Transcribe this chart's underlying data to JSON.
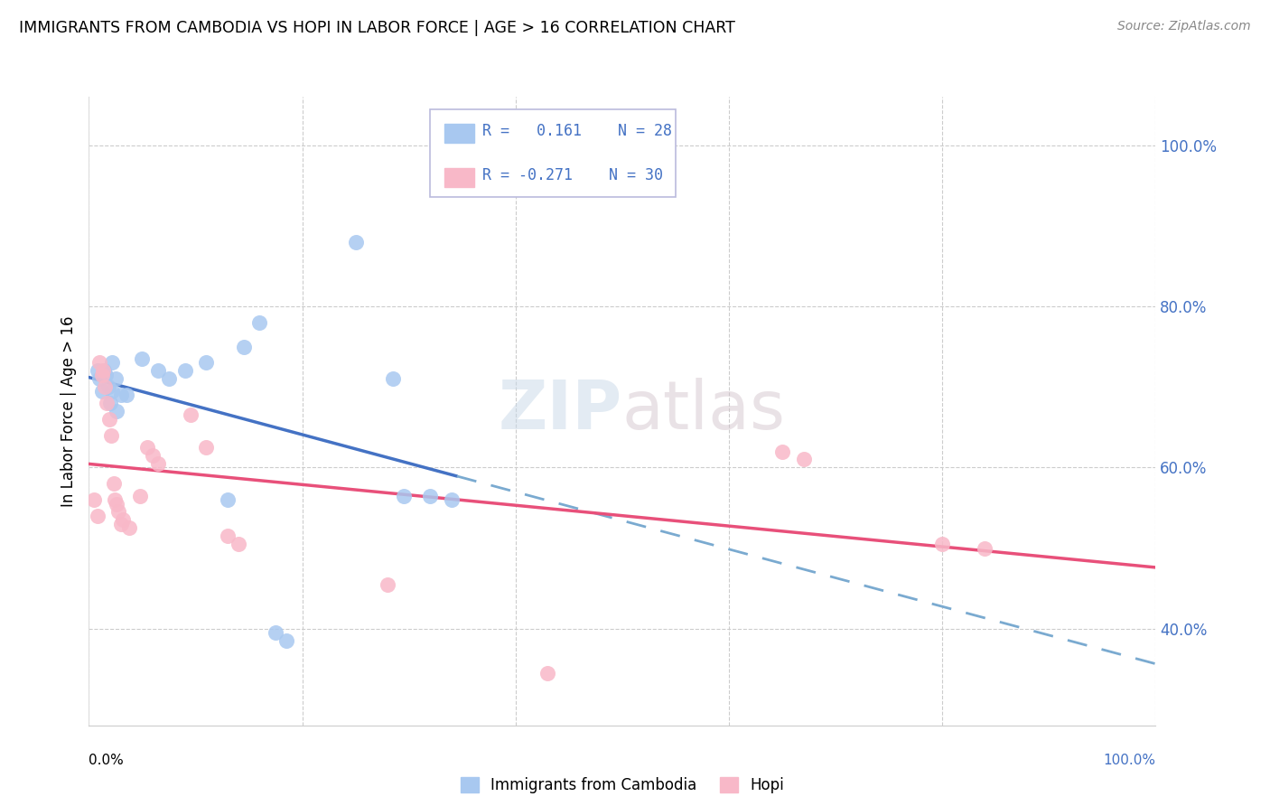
{
  "title": "IMMIGRANTS FROM CAMBODIA VS HOPI IN LABOR FORCE | AGE > 16 CORRELATION CHART",
  "source": "Source: ZipAtlas.com",
  "ylabel": "In Labor Force | Age > 16",
  "xlim": [
    0.0,
    1.0
  ],
  "ylim": [
    0.28,
    1.06
  ],
  "ytick_vals": [
    0.4,
    0.6,
    0.8,
    1.0
  ],
  "ytick_labels": [
    "40.0%",
    "60.0%",
    "80.0%",
    "100.0%"
  ],
  "watermark_text": "ZIPatlas",
  "cambodia_dot_color": "#A8C8F0",
  "hopi_dot_color": "#F8B8C8",
  "cambodia_line_color": "#4472C4",
  "hopi_line_color": "#E8507A",
  "cambodia_dash_color": "#7AAAD0",
  "r_cambodia": 0.161,
  "n_cambodia": 28,
  "r_hopi": -0.271,
  "n_hopi": 30,
  "cambodia_scatter": [
    [
      0.008,
      0.72
    ],
    [
      0.01,
      0.71
    ],
    [
      0.012,
      0.695
    ],
    [
      0.014,
      0.72
    ],
    [
      0.016,
      0.715
    ],
    [
      0.018,
      0.7
    ],
    [
      0.02,
      0.68
    ],
    [
      0.022,
      0.73
    ],
    [
      0.022,
      0.695
    ],
    [
      0.025,
      0.71
    ],
    [
      0.026,
      0.67
    ],
    [
      0.03,
      0.69
    ],
    [
      0.035,
      0.69
    ],
    [
      0.05,
      0.735
    ],
    [
      0.065,
      0.72
    ],
    [
      0.075,
      0.71
    ],
    [
      0.09,
      0.72
    ],
    [
      0.11,
      0.73
    ],
    [
      0.13,
      0.56
    ],
    [
      0.145,
      0.75
    ],
    [
      0.16,
      0.78
    ],
    [
      0.175,
      0.395
    ],
    [
      0.185,
      0.385
    ],
    [
      0.25,
      0.88
    ],
    [
      0.285,
      0.71
    ],
    [
      0.295,
      0.565
    ],
    [
      0.32,
      0.565
    ],
    [
      0.34,
      0.56
    ]
  ],
  "hopi_scatter": [
    [
      0.005,
      0.56
    ],
    [
      0.008,
      0.54
    ],
    [
      0.01,
      0.73
    ],
    [
      0.012,
      0.715
    ],
    [
      0.013,
      0.72
    ],
    [
      0.015,
      0.7
    ],
    [
      0.017,
      0.68
    ],
    [
      0.019,
      0.66
    ],
    [
      0.021,
      0.64
    ],
    [
      0.023,
      0.58
    ],
    [
      0.024,
      0.56
    ],
    [
      0.026,
      0.555
    ],
    [
      0.028,
      0.545
    ],
    [
      0.03,
      0.53
    ],
    [
      0.032,
      0.535
    ],
    [
      0.038,
      0.525
    ],
    [
      0.048,
      0.565
    ],
    [
      0.055,
      0.625
    ],
    [
      0.06,
      0.615
    ],
    [
      0.065,
      0.605
    ],
    [
      0.095,
      0.665
    ],
    [
      0.11,
      0.625
    ],
    [
      0.13,
      0.515
    ],
    [
      0.14,
      0.505
    ],
    [
      0.28,
      0.455
    ],
    [
      0.43,
      0.345
    ],
    [
      0.65,
      0.62
    ],
    [
      0.67,
      0.61
    ],
    [
      0.8,
      0.505
    ],
    [
      0.84,
      0.5
    ]
  ],
  "cam_solid_xrange": [
    0.0,
    0.345
  ],
  "cam_dash_xrange": [
    0.345,
    1.0
  ],
  "hopi_solid_xrange": [
    0.0,
    1.0
  ]
}
